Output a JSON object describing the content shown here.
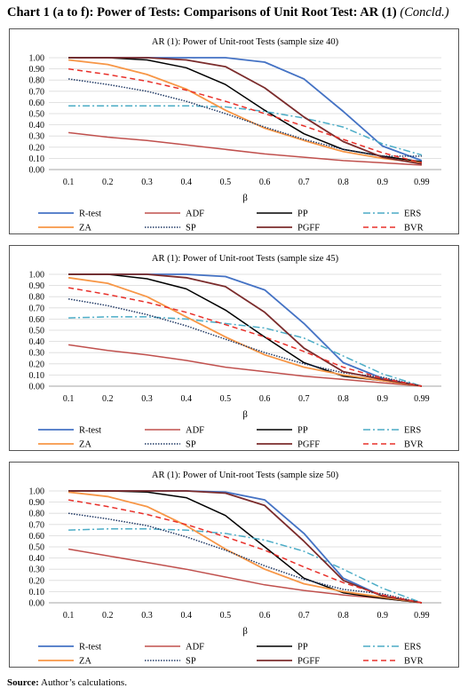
{
  "header": {
    "title": "Chart 1 (a to f): Power of Tests: Comparisons of Unit Root Test: AR (1)",
    "subtitle": "(Concld.)"
  },
  "source": {
    "label": "Source:",
    "text": "Author’s calculations."
  },
  "x_axis_label": "β",
  "series_styles": [
    {
      "name": "R-test",
      "color": "#4472C4",
      "dash": "",
      "width": 1.8
    },
    {
      "name": "ADF",
      "color": "#C0504D",
      "dash": "",
      "width": 1.5
    },
    {
      "name": "PP",
      "color": "#000000",
      "dash": "",
      "width": 1.5
    },
    {
      "name": "ERS",
      "color": "#4BACC6",
      "dash": "8,3,2,3",
      "width": 1.5
    },
    {
      "name": "ZA",
      "color": "#F79646",
      "dash": "",
      "width": 1.8
    },
    {
      "name": "SP",
      "color": "#1F3864",
      "dash": "1.5,1.5",
      "width": 1.5
    },
    {
      "name": "PGFF",
      "color": "#7B2C2C",
      "dash": "",
      "width": 1.8
    },
    {
      "name": "BVR",
      "color": "#E8302A",
      "dash": "6,4",
      "width": 1.5
    }
  ],
  "chart_data": [
    {
      "type": "line",
      "title": "AR (1): Power of Unit-root Tests (sample size 40)",
      "xlabel": "β",
      "x": [
        "0.1",
        "0.2",
        "0.3",
        "0.4",
        "0.5",
        "0.6",
        "0.7",
        "0.8",
        "0.9",
        "0.99"
      ],
      "y_ticks": [
        "1.00",
        "0.90",
        "0.80",
        "0.70",
        "0.60",
        "0.50",
        "0.40",
        "0.30",
        "0.20",
        "0.10",
        "0.00"
      ],
      "ylim": [
        0,
        1
      ],
      "legend": "bottom",
      "series": [
        {
          "name": "R-test",
          "values": [
            1.0,
            1.0,
            1.0,
            1.0,
            1.0,
            0.96,
            0.81,
            0.52,
            0.21,
            0.08
          ]
        },
        {
          "name": "ADF",
          "values": [
            0.33,
            0.29,
            0.26,
            0.22,
            0.18,
            0.14,
            0.11,
            0.08,
            0.06,
            0.04
          ]
        },
        {
          "name": "PP",
          "values": [
            1.0,
            1.0,
            0.98,
            0.91,
            0.76,
            0.53,
            0.32,
            0.18,
            0.12,
            0.07
          ]
        },
        {
          "name": "ERS",
          "values": [
            0.57,
            0.57,
            0.57,
            0.57,
            0.56,
            0.52,
            0.46,
            0.38,
            0.23,
            0.13
          ]
        },
        {
          "name": "ZA",
          "values": [
            0.98,
            0.94,
            0.85,
            0.72,
            0.53,
            0.37,
            0.26,
            0.16,
            0.1,
            0.06
          ]
        },
        {
          "name": "SP",
          "values": [
            0.81,
            0.76,
            0.7,
            0.61,
            0.5,
            0.38,
            0.27,
            0.18,
            0.12,
            0.12
          ]
        },
        {
          "name": "PGFF",
          "values": [
            1.0,
            1.0,
            1.0,
            0.98,
            0.92,
            0.73,
            0.47,
            0.25,
            0.11,
            0.05
          ]
        },
        {
          "name": "BVR",
          "values": [
            0.9,
            0.85,
            0.79,
            0.71,
            0.61,
            0.5,
            0.39,
            0.27,
            0.15,
            0.06
          ]
        }
      ]
    },
    {
      "type": "line",
      "title": "AR (1): Power of Unit-root Tests (sample size 45)",
      "xlabel": "β",
      "x": [
        "0.1",
        "0.2",
        "0.3",
        "0.4",
        "0.5",
        "0.6",
        "0.7",
        "0.8",
        "0.9",
        "0.99"
      ],
      "y_ticks": [
        "1.00",
        "0.90",
        "0.80",
        "0.70",
        "0.60",
        "0.50",
        "0.40",
        "0.30",
        "0.20",
        "0.10",
        "0.00"
      ],
      "ylim": [
        0,
        1
      ],
      "legend": "bottom",
      "series": [
        {
          "name": "R-test",
          "values": [
            1.0,
            1.0,
            1.0,
            1.0,
            0.98,
            0.86,
            0.56,
            0.21,
            0.07,
            0.0
          ]
        },
        {
          "name": "ADF",
          "values": [
            0.37,
            0.32,
            0.28,
            0.23,
            0.17,
            0.13,
            0.09,
            0.06,
            0.03,
            0.0
          ]
        },
        {
          "name": "PP",
          "values": [
            1.0,
            1.0,
            0.96,
            0.87,
            0.68,
            0.44,
            0.21,
            0.09,
            0.05,
            0.0
          ]
        },
        {
          "name": "ERS",
          "values": [
            0.61,
            0.62,
            0.62,
            0.6,
            0.56,
            0.52,
            0.43,
            0.27,
            0.11,
            0.0
          ]
        },
        {
          "name": "ZA",
          "values": [
            0.97,
            0.92,
            0.8,
            0.62,
            0.44,
            0.28,
            0.17,
            0.1,
            0.05,
            0.0
          ]
        },
        {
          "name": "SP",
          "values": [
            0.78,
            0.72,
            0.64,
            0.54,
            0.42,
            0.3,
            0.2,
            0.12,
            0.08,
            0.0
          ]
        },
        {
          "name": "PGFF",
          "values": [
            1.0,
            1.0,
            1.0,
            0.97,
            0.89,
            0.66,
            0.34,
            0.13,
            0.06,
            0.0
          ]
        },
        {
          "name": "BVR",
          "values": [
            0.88,
            0.82,
            0.75,
            0.66,
            0.55,
            0.44,
            0.31,
            0.17,
            0.07,
            0.0
          ]
        }
      ]
    },
    {
      "type": "line",
      "title": "AR (1): Power of Unit-root Tests (sample size 50)",
      "xlabel": "β",
      "x": [
        "0.1",
        "0.2",
        "0.3",
        "0.4",
        "0.5",
        "0.6",
        "0.7",
        "0.8",
        "0.9",
        "0.99"
      ],
      "y_ticks": [
        "1.00",
        "0.90",
        "0.80",
        "0.70",
        "0.60",
        "0.50",
        "0.40",
        "0.30",
        "0.20",
        "0.10",
        "0.00"
      ],
      "ylim": [
        0,
        1
      ],
      "legend": "bottom",
      "series": [
        {
          "name": "R-test",
          "values": [
            1.0,
            1.0,
            1.0,
            1.0,
            0.99,
            0.92,
            0.62,
            0.22,
            0.06,
            0.0
          ]
        },
        {
          "name": "ADF",
          "values": [
            0.48,
            0.42,
            0.36,
            0.3,
            0.23,
            0.16,
            0.11,
            0.07,
            0.04,
            0.0
          ]
        },
        {
          "name": "PP",
          "values": [
            1.0,
            1.0,
            0.99,
            0.94,
            0.78,
            0.5,
            0.22,
            0.09,
            0.04,
            0.0
          ]
        },
        {
          "name": "ERS",
          "values": [
            0.65,
            0.66,
            0.66,
            0.65,
            0.62,
            0.56,
            0.46,
            0.3,
            0.13,
            0.0
          ]
        },
        {
          "name": "ZA",
          "values": [
            0.99,
            0.95,
            0.86,
            0.69,
            0.48,
            0.3,
            0.17,
            0.1,
            0.05,
            0.0
          ]
        },
        {
          "name": "SP",
          "values": [
            0.8,
            0.75,
            0.69,
            0.59,
            0.47,
            0.33,
            0.21,
            0.12,
            0.08,
            0.0
          ]
        },
        {
          "name": "PGFF",
          "values": [
            1.0,
            1.0,
            1.0,
            1.0,
            0.98,
            0.87,
            0.55,
            0.2,
            0.06,
            0.0
          ]
        },
        {
          "name": "BVR",
          "values": [
            0.92,
            0.86,
            0.79,
            0.7,
            0.59,
            0.47,
            0.32,
            0.18,
            0.07,
            0.0
          ]
        }
      ]
    }
  ]
}
